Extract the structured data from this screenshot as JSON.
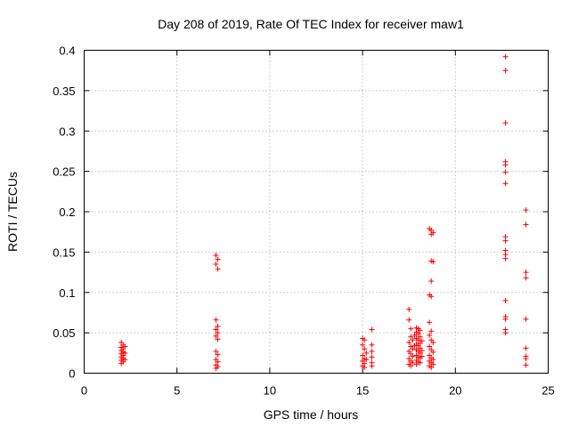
{
  "chart_data": {
    "type": "scatter",
    "title": "Day 208 of 2019, Rate Of TEC Index for receiver maw1",
    "xlabel": "GPS time / hours",
    "ylabel": "ROTI / TECUs",
    "xlim": [
      0,
      25
    ],
    "ylim": [
      0,
      0.4
    ],
    "x_ticks": [
      0,
      5,
      10,
      15,
      20,
      25
    ],
    "x_tick_labels": [
      "0",
      "5",
      "10",
      "15",
      "20",
      "25"
    ],
    "y_ticks": [
      0,
      0.05,
      0.1,
      0.15,
      0.2,
      0.25,
      0.3,
      0.35,
      0.4
    ],
    "y_tick_labels": [
      "0",
      "0.05",
      "0.1",
      "0.15",
      "0.2",
      "0.25",
      "0.3",
      "0.35",
      "0.4"
    ],
    "grid": true,
    "marker": "+",
    "color": "#ff0000",
    "series": [
      {
        "name": "maw1",
        "points": [
          [
            2.0,
            0.038
          ],
          [
            2.1,
            0.035
          ],
          [
            2.0,
            0.032
          ],
          [
            2.1,
            0.03
          ],
          [
            2.0,
            0.028
          ],
          [
            2.1,
            0.026
          ],
          [
            2.0,
            0.024
          ],
          [
            2.1,
            0.022
          ],
          [
            2.0,
            0.02
          ],
          [
            2.1,
            0.018
          ],
          [
            2.0,
            0.016
          ],
          [
            2.1,
            0.014
          ],
          [
            2.0,
            0.012
          ],
          [
            2.2,
            0.033
          ],
          [
            2.2,
            0.025
          ],
          [
            2.2,
            0.017
          ],
          [
            7.1,
            0.146
          ],
          [
            7.2,
            0.141
          ],
          [
            7.1,
            0.135
          ],
          [
            7.2,
            0.129
          ],
          [
            7.1,
            0.066
          ],
          [
            7.2,
            0.058
          ],
          [
            7.1,
            0.054
          ],
          [
            7.2,
            0.05
          ],
          [
            7.1,
            0.046
          ],
          [
            7.2,
            0.042
          ],
          [
            7.1,
            0.027
          ],
          [
            7.2,
            0.023
          ],
          [
            7.1,
            0.017
          ],
          [
            7.2,
            0.014
          ],
          [
            7.1,
            0.01
          ],
          [
            7.2,
            0.008
          ],
          [
            7.1,
            0.006
          ],
          [
            15.0,
            0.043
          ],
          [
            15.1,
            0.041
          ],
          [
            15.0,
            0.035
          ],
          [
            15.1,
            0.03
          ],
          [
            15.0,
            0.022
          ],
          [
            15.1,
            0.018
          ],
          [
            15.0,
            0.015
          ],
          [
            15.1,
            0.012
          ],
          [
            15.0,
            0.009
          ],
          [
            15.1,
            0.007
          ],
          [
            15.2,
            0.025
          ],
          [
            15.2,
            0.017
          ],
          [
            15.5,
            0.054
          ],
          [
            15.5,
            0.035
          ],
          [
            15.5,
            0.027
          ],
          [
            15.5,
            0.02
          ],
          [
            15.5,
            0.013
          ],
          [
            15.5,
            0.009
          ],
          [
            17.5,
            0.079
          ],
          [
            17.5,
            0.066
          ],
          [
            17.6,
            0.055
          ],
          [
            17.6,
            0.045
          ],
          [
            17.7,
            0.041
          ],
          [
            17.5,
            0.038
          ],
          [
            17.6,
            0.033
          ],
          [
            17.7,
            0.03
          ],
          [
            17.5,
            0.027
          ],
          [
            17.6,
            0.024
          ],
          [
            17.7,
            0.021
          ],
          [
            17.5,
            0.018
          ],
          [
            17.6,
            0.015
          ],
          [
            17.7,
            0.013
          ],
          [
            17.5,
            0.011
          ],
          [
            17.6,
            0.009
          ],
          [
            17.8,
            0.047
          ],
          [
            17.8,
            0.034
          ],
          [
            17.9,
            0.056
          ],
          [
            17.9,
            0.051
          ],
          [
            17.9,
            0.043
          ],
          [
            17.9,
            0.036
          ],
          [
            17.9,
            0.029
          ],
          [
            17.9,
            0.022
          ],
          [
            17.9,
            0.016
          ],
          [
            17.9,
            0.011
          ],
          [
            18.0,
            0.055
          ],
          [
            18.0,
            0.049
          ],
          [
            18.0,
            0.041
          ],
          [
            18.0,
            0.034
          ],
          [
            18.0,
            0.027
          ],
          [
            18.0,
            0.02
          ],
          [
            18.0,
            0.014
          ],
          [
            18.1,
            0.053
          ],
          [
            18.1,
            0.045
          ],
          [
            18.1,
            0.037
          ],
          [
            18.1,
            0.031
          ],
          [
            18.1,
            0.025
          ],
          [
            18.1,
            0.019
          ],
          [
            18.1,
            0.013
          ],
          [
            18.2,
            0.04
          ],
          [
            18.2,
            0.028
          ],
          [
            18.2,
            0.021
          ],
          [
            18.6,
            0.179
          ],
          [
            18.7,
            0.177
          ],
          [
            18.8,
            0.174
          ],
          [
            18.7,
            0.172
          ],
          [
            18.7,
            0.139
          ],
          [
            18.8,
            0.138
          ],
          [
            18.7,
            0.114
          ],
          [
            18.6,
            0.097
          ],
          [
            18.7,
            0.095
          ],
          [
            18.6,
            0.063
          ],
          [
            18.7,
            0.052
          ],
          [
            18.6,
            0.047
          ],
          [
            18.7,
            0.041
          ],
          [
            18.8,
            0.038
          ],
          [
            18.6,
            0.033
          ],
          [
            18.7,
            0.029
          ],
          [
            18.8,
            0.026
          ],
          [
            18.6,
            0.022
          ],
          [
            18.7,
            0.019
          ],
          [
            18.8,
            0.017
          ],
          [
            18.6,
            0.015
          ],
          [
            18.7,
            0.013
          ],
          [
            18.8,
            0.011
          ],
          [
            18.6,
            0.009
          ],
          [
            18.7,
            0.007
          ],
          [
            22.7,
            0.392
          ],
          [
            22.7,
            0.375
          ],
          [
            22.7,
            0.31
          ],
          [
            22.7,
            0.262
          ],
          [
            22.7,
            0.258
          ],
          [
            22.7,
            0.249
          ],
          [
            22.7,
            0.235
          ],
          [
            22.7,
            0.169
          ],
          [
            22.7,
            0.164
          ],
          [
            22.7,
            0.152
          ],
          [
            22.7,
            0.147
          ],
          [
            22.7,
            0.142
          ],
          [
            22.7,
            0.09
          ],
          [
            22.7,
            0.07
          ],
          [
            22.7,
            0.067
          ],
          [
            22.7,
            0.054
          ],
          [
            22.7,
            0.05
          ],
          [
            23.8,
            0.202
          ],
          [
            23.8,
            0.184
          ],
          [
            23.8,
            0.125
          ],
          [
            23.8,
            0.118
          ],
          [
            23.8,
            0.067
          ],
          [
            23.8,
            0.031
          ],
          [
            23.8,
            0.021
          ],
          [
            23.8,
            0.018
          ],
          [
            23.8,
            0.01
          ]
        ]
      }
    ]
  }
}
